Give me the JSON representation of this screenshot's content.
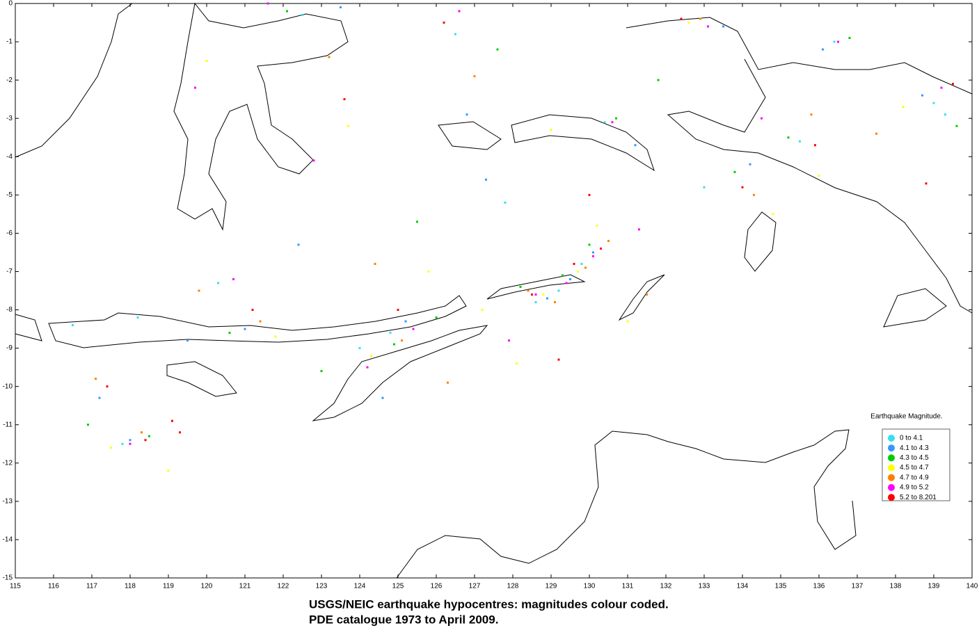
{
  "chart_data": {
    "type": "scatter",
    "caption": [
      "USGS/NEIC earthquake hypocentres: magnitudes colour coded.",
      "PDE catalogue 1973 to April 2009."
    ],
    "legend_title": "Earthquake Magnitude.",
    "xlim": [
      115,
      140
    ],
    "ylim": [
      -15,
      0
    ],
    "xticks": [
      115,
      116,
      117,
      118,
      119,
      120,
      121,
      122,
      123,
      124,
      125,
      126,
      127,
      128,
      129,
      130,
      131,
      132,
      133,
      134,
      135,
      136,
      137,
      138,
      139,
      140
    ],
    "yticks": [
      0,
      -1,
      -2,
      -3,
      -4,
      -5,
      -6,
      -7,
      -8,
      -9,
      -10,
      -11,
      -12,
      -13,
      -14,
      -15
    ],
    "series": [
      {
        "name": "0 to 4.1",
        "color": "#33e0f0",
        "x": [
          117.8,
          118.2,
          122.5,
          124.8,
          126.5,
          128.6,
          129.2,
          129.8,
          130.4,
          135.5,
          136.4,
          139.0,
          139.3,
          120.3,
          116.5,
          133.0,
          124.0,
          127.8
        ],
        "values": [
          -11.5,
          -8.2,
          -0.3,
          -8.6,
          -0.8,
          -7.8,
          -7.5,
          -6.8,
          -3.1,
          -3.6,
          -1.0,
          -2.6,
          -2.9,
          -7.3,
          -8.4,
          -4.8,
          -9.0,
          -5.2
        ]
      },
      {
        "name": "4.1 to 4.3",
        "color": "#3399ff",
        "x": [
          118.0,
          121.0,
          123.5,
          125.2,
          128.9,
          129.5,
          130.1,
          131.2,
          134.2,
          136.1,
          138.7,
          117.2,
          119.5,
          126.8,
          133.5,
          124.6,
          127.3,
          122.4
        ],
        "values": [
          -11.4,
          -8.5,
          -0.1,
          -8.3,
          -7.7,
          -7.2,
          -6.5,
          -3.7,
          -4.2,
          -1.2,
          -2.4,
          -10.3,
          -8.8,
          -2.9,
          -0.6,
          -10.3,
          -4.6,
          -6.3
        ]
      },
      {
        "name": "4.3 to 4.5",
        "color": "#00cc00",
        "x": [
          118.5,
          120.6,
          124.9,
          126.0,
          128.2,
          129.3,
          130.0,
          130.7,
          133.8,
          135.2,
          136.8,
          139.6,
          116.9,
          122.1,
          127.6,
          131.8,
          125.5,
          123.0
        ],
        "values": [
          -11.3,
          -8.6,
          -8.9,
          -8.2,
          -7.4,
          -7.1,
          -6.3,
          -3.0,
          -4.4,
          -3.5,
          -0.9,
          -3.2,
          -11.0,
          -0.2,
          -1.2,
          -2.0,
          -5.7,
          -9.6
        ]
      },
      {
        "name": "4.5 to 4.7",
        "color": "#ffff00",
        "x": [
          117.5,
          121.8,
          124.3,
          127.2,
          128.8,
          129.7,
          130.2,
          132.6,
          134.8,
          138.2,
          119.0,
          125.8,
          131.0,
          136.0,
          123.7,
          120.0,
          128.1,
          129.0
        ],
        "values": [
          -11.6,
          -8.7,
          -9.2,
          -8.0,
          -7.6,
          -7.0,
          -5.8,
          -0.5,
          -5.5,
          -2.7,
          -12.2,
          -7.0,
          -8.3,
          -4.5,
          -3.2,
          -1.5,
          -9.4,
          -3.3
        ]
      },
      {
        "name": "4.7 to 4.9",
        "color": "#ff7f00",
        "x": [
          118.3,
          121.4,
          125.1,
          128.4,
          129.1,
          129.9,
          130.5,
          132.9,
          134.3,
          137.5,
          117.1,
          123.2,
          126.3,
          131.5,
          135.8,
          119.8,
          127.0,
          124.4
        ],
        "values": [
          -11.2,
          -8.3,
          -8.8,
          -7.5,
          -7.8,
          -6.9,
          -6.2,
          -0.4,
          -5.0,
          -3.4,
          -9.8,
          -1.4,
          -9.9,
          -7.6,
          -2.9,
          -7.5,
          -1.9,
          -6.8
        ]
      },
      {
        "name": "4.9 to 5.2",
        "color": "#ff00ff",
        "x": [
          119.7,
          121.6,
          128.6,
          129.4,
          130.1,
          130.6,
          133.1,
          139.2,
          118.0,
          125.4,
          124.2,
          126.6,
          131.3,
          136.5,
          122.8,
          120.7,
          127.9,
          134.5
        ],
        "values": [
          -2.2,
          0.0,
          -7.6,
          -7.3,
          -6.6,
          -3.1,
          -0.6,
          -2.2,
          -11.5,
          -8.5,
          -9.5,
          -0.2,
          -5.9,
          -1.0,
          -4.1,
          -7.2,
          -8.8,
          -3.0
        ]
      },
      {
        "name": "5.2 to 8.201",
        "color": "#ff0000",
        "x": [
          117.4,
          119.1,
          119.3,
          128.5,
          129.6,
          130.3,
          130.0,
          139.5,
          132.4,
          134.0,
          118.4,
          125.0,
          126.2,
          121.2,
          123.6,
          135.9,
          138.8,
          129.2
        ],
        "values": [
          -10.0,
          -10.9,
          -11.2,
          -7.6,
          -6.8,
          -6.4,
          -5.0,
          -2.1,
          -0.4,
          -4.8,
          -11.4,
          -8.0,
          -0.5,
          -8.0,
          -2.5,
          -3.7,
          -4.7,
          -9.3
        ]
      }
    ]
  }
}
